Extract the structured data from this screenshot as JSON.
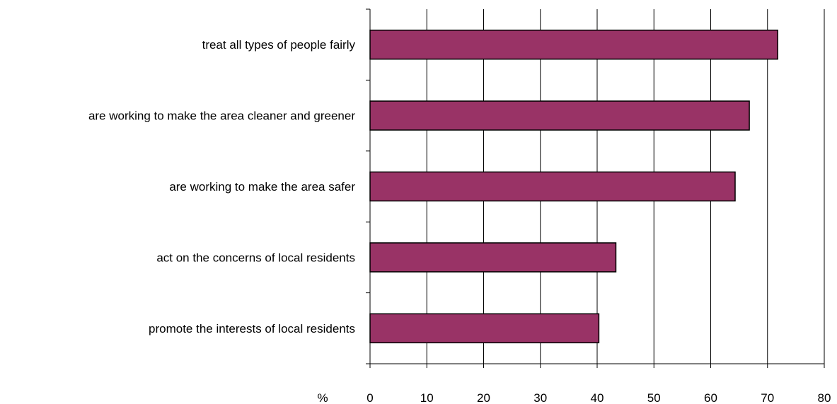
{
  "chart_data": {
    "type": "bar",
    "orientation": "horizontal",
    "categories": [
      "treat all types of people fairly",
      "are working to make the area cleaner and greener",
      "are working to make the area safer",
      "act on the concerns of local residents",
      "promote the interests of local residents"
    ],
    "values": [
      71.8,
      66.8,
      64.3,
      43.3,
      40.3
    ],
    "xlim": [
      0,
      80
    ],
    "xticks": [
      "0",
      "10",
      "20",
      "30",
      "40",
      "50",
      "60",
      "70",
      "80"
    ],
    "unit_label": "%",
    "grid": "vertical",
    "legend": "none",
    "colors": {
      "bar_fill": "#993366",
      "bar_stroke": "#000000",
      "grid": "#000000"
    }
  }
}
